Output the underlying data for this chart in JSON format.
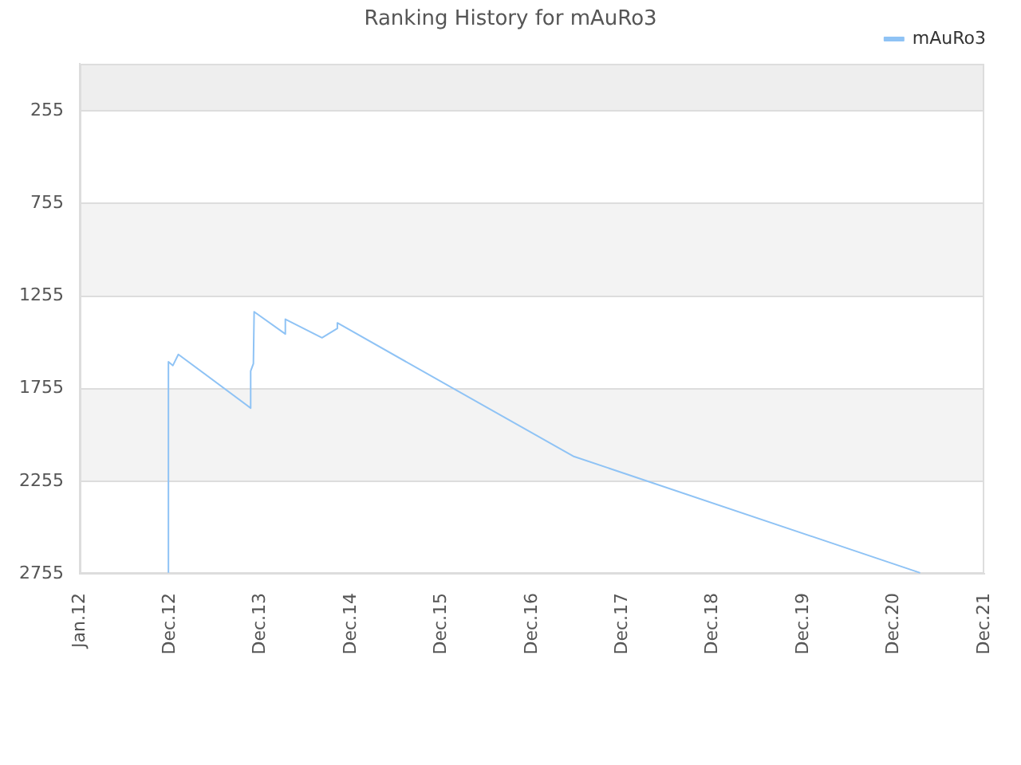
{
  "chart_data": {
    "type": "line",
    "title": "Ranking History for mAuRo3",
    "x": [
      "2012-12-24",
      "2012-12-24",
      "2013-01-11",
      "2013-02-02",
      "2013-11-21",
      "2013-11-21",
      "2013-12-02",
      "2013-12-05",
      "2014-04-10",
      "2014-04-10",
      "2014-09-05",
      "2014-11-06",
      "2014-11-06",
      "2017-06-15",
      "2021-04-16"
    ],
    "series": [
      {
        "name": "mAuRo3",
        "color": "#8fc3f5",
        "values": [
          2750,
          1610,
          1630,
          1570,
          1860,
          1660,
          1620,
          1340,
          1460,
          1380,
          1480,
          1430,
          1400,
          2120,
          2750
        ]
      }
    ],
    "xlim": [
      "2012-01-01",
      "2021-12-31"
    ],
    "xticks": [
      {
        "value": "2012-01-01",
        "label": "Jan.12"
      },
      {
        "value": "2012-12-31",
        "label": "Dec.12"
      },
      {
        "value": "2013-12-31",
        "label": "Dec.13"
      },
      {
        "value": "2014-12-31",
        "label": "Dec.14"
      },
      {
        "value": "2015-12-31",
        "label": "Dec.15"
      },
      {
        "value": "2016-12-31",
        "label": "Dec.16"
      },
      {
        "value": "2017-12-31",
        "label": "Dec.17"
      },
      {
        "value": "2018-12-31",
        "label": "Dec.18"
      },
      {
        "value": "2019-12-31",
        "label": "Dec.19"
      },
      {
        "value": "2020-12-31",
        "label": "Dec.20"
      },
      {
        "value": "2021-12-31",
        "label": "Dec.21"
      }
    ],
    "ylim": [
      2755,
      0
    ],
    "yticks": [
      255,
      755,
      1255,
      1755,
      2255,
      2755
    ],
    "bands": [
      {
        "axis": "y",
        "from": 0,
        "to": 255,
        "color": "#eeeeee"
      },
      {
        "axis": "y",
        "from": 755,
        "to": 1255,
        "color": "#f3f3f3"
      },
      {
        "axis": "y",
        "from": 1755,
        "to": 2255,
        "color": "#f3f3f3"
      }
    ],
    "grid": "y",
    "legend": "top right",
    "marker": "none"
  }
}
